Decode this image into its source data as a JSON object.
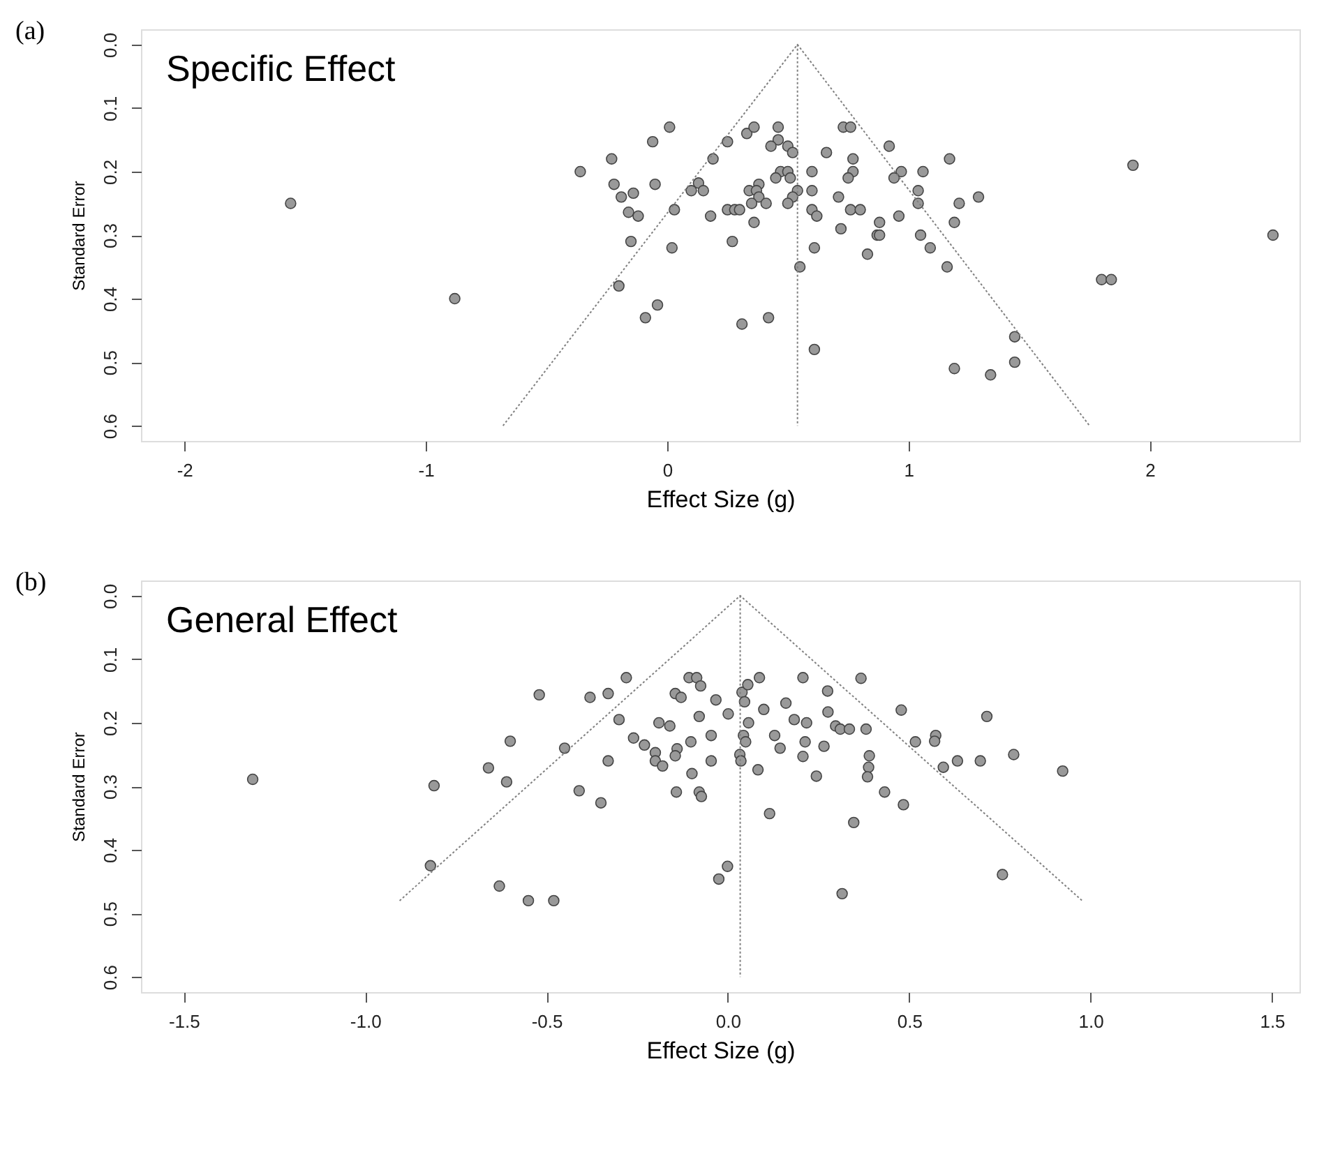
{
  "chart_data": [
    {
      "type": "scatter",
      "title": "Specific Effect",
      "annotations": [
        "(a)"
      ],
      "xlabel": "Effect Size (g)",
      "ylabel": "Standard Error",
      "xlim": [
        -2.18,
        2.62
      ],
      "ylim": [
        0.624,
        -0.024
      ],
      "xticks": [
        -2,
        -1,
        0,
        1,
        2
      ],
      "yticks": [
        {
          "value": 0,
          "label": "0.0"
        },
        0.1,
        0.2,
        0.3,
        0.4,
        0.5,
        0.6
      ],
      "grid": false,
      "series": [
        {
          "type": "scatter",
          "marker": "circle",
          "color": "#999999",
          "x": [
            -1.56,
            -0.88,
            -0.36,
            -0.23,
            -0.22,
            -0.19,
            -0.14,
            -0.16,
            -0.12,
            -0.15,
            -0.2,
            -0.06,
            0.01,
            -0.05,
            0.03,
            0.02,
            -0.04,
            -0.09,
            0.25,
            0.33,
            0.36,
            0.46,
            0.46,
            0.43,
            0.5,
            0.52,
            0.19,
            0.66,
            0.73,
            0.76,
            0.77,
            0.92,
            1.17,
            1.93,
            0.47,
            0.5,
            0.6,
            0.77,
            0.97,
            1.06,
            0.45,
            0.51,
            0.75,
            0.94,
            0.13,
            0.38,
            0.1,
            0.15,
            0.34,
            0.37,
            0.54,
            0.6,
            1.04,
            0.38,
            0.52,
            0.71,
            1.29,
            0.35,
            0.41,
            0.5,
            1.04,
            1.21,
            0.25,
            0.28,
            0.3,
            0.6,
            0.76,
            0.8,
            0.18,
            0.62,
            0.96,
            0.36,
            0.72,
            0.88,
            1.19,
            0.87,
            0.88,
            1.05,
            2.51,
            0.27,
            0.61,
            1.09,
            0.83,
            0.55,
            1.16,
            1.8,
            1.84,
            0.42,
            0.31,
            0.61,
            1.44,
            1.44,
            1.19,
            1.34
          ],
          "values": [
            0.25,
            0.4,
            0.2,
            0.18,
            0.22,
            0.24,
            0.234,
            0.264,
            0.27,
            0.31,
            0.38,
            0.153,
            0.13,
            0.22,
            0.26,
            0.32,
            0.41,
            0.43,
            0.153,
            0.14,
            0.13,
            0.13,
            0.15,
            0.16,
            0.16,
            0.17,
            0.18,
            0.17,
            0.13,
            0.13,
            0.18,
            0.16,
            0.18,
            0.19,
            0.2,
            0.2,
            0.2,
            0.2,
            0.2,
            0.2,
            0.21,
            0.21,
            0.21,
            0.21,
            0.218,
            0.22,
            0.23,
            0.23,
            0.23,
            0.23,
            0.23,
            0.23,
            0.23,
            0.24,
            0.24,
            0.24,
            0.24,
            0.25,
            0.25,
            0.25,
            0.25,
            0.25,
            0.26,
            0.26,
            0.26,
            0.26,
            0.26,
            0.26,
            0.27,
            0.27,
            0.27,
            0.28,
            0.29,
            0.28,
            0.28,
            0.3,
            0.3,
            0.3,
            0.3,
            0.31,
            0.32,
            0.32,
            0.33,
            0.35,
            0.35,
            0.37,
            0.37,
            0.43,
            0.44,
            0.48,
            0.46,
            0.5,
            0.51,
            0.52
          ]
        },
        {
          "type": "line",
          "line_style": "dotted",
          "color": "#808080",
          "x": [
            -0.68,
            0.54,
            1.75
          ],
          "values": [
            0.6,
            0,
            0.6
          ]
        },
        {
          "type": "line",
          "line_style": "dotted",
          "color": "#808080",
          "x": [
            0.54,
            0.54
          ],
          "values": [
            0,
            0.6
          ]
        }
      ]
    },
    {
      "type": "scatter",
      "title": "General Effect",
      "annotations": [
        "(b)"
      ],
      "xlabel": "Effect Size (g)",
      "ylabel": "Standard Error",
      "xlim": [
        -1.618,
        1.576
      ],
      "ylim": [
        0.624,
        -0.024
      ],
      "xticks": [
        -1.5,
        {
          "value": -1,
          "label": "-1.0"
        },
        -0.5,
        {
          "value": 0,
          "label": "0.0"
        },
        0.5,
        {
          "value": 1,
          "label": "1.0"
        },
        1.5
      ],
      "yticks": [
        {
          "value": 0,
          "label": "0.0"
        },
        0.1,
        0.2,
        0.3,
        0.4,
        0.5,
        0.6
      ],
      "grid": false,
      "series": [
        {
          "type": "scatter",
          "marker": "circle",
          "color": "#999999",
          "x": [
            -1.31,
            -0.81,
            -0.82,
            -0.66,
            -0.61,
            -0.6,
            -0.52,
            -0.45,
            -0.41,
            -0.38,
            -0.35,
            -0.33,
            -0.33,
            -0.3,
            -0.28,
            -0.26,
            -0.23,
            -0.2,
            -0.2,
            -0.18,
            -0.19,
            -0.16,
            -0.63,
            -0.55,
            -0.48,
            -0.145,
            -0.129,
            -0.14,
            -0.145,
            -0.142,
            -0.107,
            -0.086,
            -0.075,
            -0.102,
            -0.099,
            -0.079,
            -0.079,
            -0.073,
            -0.046,
            -0.046,
            -0.033,
            0.001,
            -0.025,
            -0.001,
            0.039,
            0.046,
            0.055,
            0.057,
            0.043,
            0.049,
            0.033,
            0.036,
            0.083,
            0.087,
            0.099,
            0.115,
            0.129,
            0.144,
            0.16,
            0.183,
            0.207,
            0.207,
            0.213,
            0.217,
            0.244,
            0.265,
            0.275,
            0.276,
            0.297,
            0.31,
            0.335,
            0.315,
            0.347,
            0.367,
            0.381,
            0.39,
            0.388,
            0.385,
            0.432,
            0.478,
            0.484,
            0.517,
            0.573,
            0.57,
            0.594,
            0.633,
            0.696,
            0.714,
            0.757,
            0.788,
            0.923
          ],
          "values": [
            0.289,
            0.299,
            0.425,
            0.271,
            0.293,
            0.229,
            0.156,
            0.24,
            0.307,
            0.16,
            0.326,
            0.154,
            0.26,
            0.195,
            0.129,
            0.224,
            0.235,
            0.247,
            0.26,
            0.268,
            0.2,
            0.205,
            0.457,
            0.48,
            0.48,
            0.154,
            0.16,
            0.241,
            0.252,
            0.309,
            0.129,
            0.129,
            0.142,
            0.23,
            0.28,
            0.19,
            0.309,
            0.316,
            0.22,
            0.26,
            0.164,
            0.186,
            0.446,
            0.426,
            0.152,
            0.167,
            0.14,
            0.2,
            0.22,
            0.23,
            0.25,
            0.26,
            0.274,
            0.129,
            0.179,
            0.343,
            0.22,
            0.24,
            0.169,
            0.195,
            0.129,
            0.253,
            0.23,
            0.2,
            0.284,
            0.237,
            0.15,
            0.183,
            0.205,
            0.21,
            0.21,
            0.469,
            0.357,
            0.13,
            0.21,
            0.252,
            0.27,
            0.285,
            0.309,
            0.18,
            0.329,
            0.23,
            0.22,
            0.229,
            0.27,
            0.26,
            0.26,
            0.19,
            0.439,
            0.25,
            0.276
          ]
        },
        {
          "type": "line",
          "line_style": "dotted",
          "color": "#808080",
          "x": [
            -0.905,
            0.034,
            0.977
          ],
          "values": [
            0.48,
            0,
            0.48
          ]
        },
        {
          "type": "line",
          "line_style": "dotted",
          "color": "#808080",
          "x": [
            0.034,
            0.034
          ],
          "values": [
            0,
            0.6
          ]
        }
      ]
    }
  ]
}
